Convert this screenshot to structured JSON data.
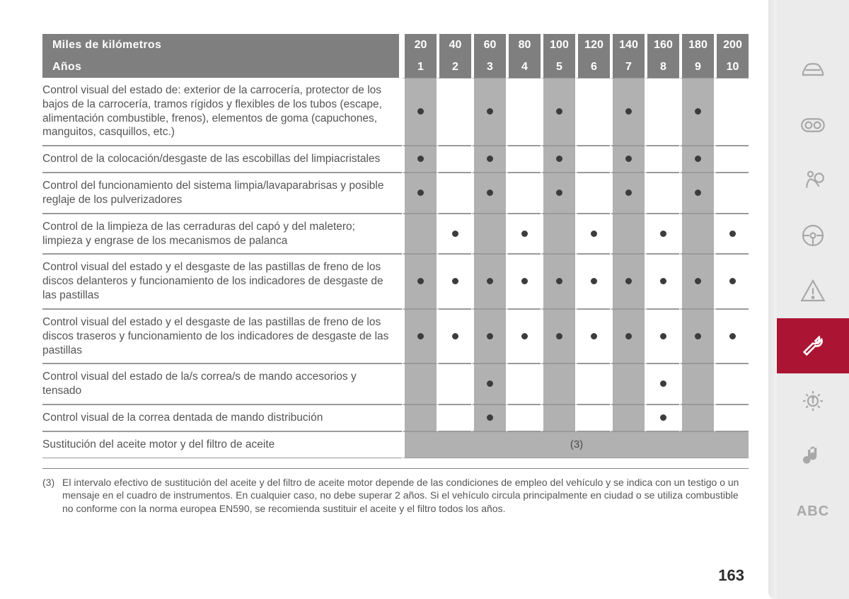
{
  "table": {
    "header1": {
      "label": "Miles de kilómetros",
      "values": [
        "20",
        "40",
        "60",
        "80",
        "100",
        "120",
        "140",
        "160",
        "180",
        "200"
      ]
    },
    "header2": {
      "label": "Años",
      "values": [
        "1",
        "2",
        "3",
        "4",
        "5",
        "6",
        "7",
        "8",
        "9",
        "10"
      ]
    },
    "shaded_cols": [
      0,
      2,
      4,
      6,
      8
    ],
    "rows": [
      {
        "label": "Control visual del estado de: exterior de la carrocería, protector de los bajos de la carrocería, tramos rígidos y flexibles de los tubos (escape, alimentación combustible, frenos), elementos de goma (capuchones, manguitos, casquillos, etc.)",
        "marks": [
          1,
          0,
          1,
          0,
          1,
          0,
          1,
          0,
          1,
          0
        ]
      },
      {
        "label": "Control de la colocación/desgaste de las escobillas del limpiacristales",
        "marks": [
          1,
          0,
          1,
          0,
          1,
          0,
          1,
          0,
          1,
          0
        ]
      },
      {
        "label": "Control del funcionamiento del sistema limpia/lavaparabrisas y posible reglaje de los pulverizadores",
        "marks": [
          1,
          0,
          1,
          0,
          1,
          0,
          1,
          0,
          1,
          0
        ]
      },
      {
        "label": "Control de la limpieza de las cerraduras del capó y del maletero; limpieza y engrase de los mecanismos de palanca",
        "marks": [
          0,
          1,
          0,
          1,
          0,
          1,
          0,
          1,
          0,
          1
        ]
      },
      {
        "label": "Control visual del estado y el desgaste de las pastillas de freno de los discos delanteros y funcionamiento de los indicadores de desgaste de las pastillas",
        "marks": [
          1,
          1,
          1,
          1,
          1,
          1,
          1,
          1,
          1,
          1
        ]
      },
      {
        "label": "Control visual del estado y el desgaste de las pastillas de freno de los discos traseros y funcionamiento de los indicadores de desgaste de las pastillas",
        "marks": [
          1,
          1,
          1,
          1,
          1,
          1,
          1,
          1,
          1,
          1
        ]
      },
      {
        "label": "Control visual del estado de la/s correa/s de mando accesorios y tensado",
        "marks": [
          0,
          0,
          1,
          0,
          0,
          0,
          0,
          1,
          0,
          0
        ]
      },
      {
        "label": "Control visual de la correa dentada de mando distribución",
        "marks": [
          0,
          0,
          1,
          0,
          0,
          0,
          0,
          1,
          0,
          0
        ]
      },
      {
        "label": "Sustitución del aceite motor y del filtro de aceite",
        "note": "(3)"
      }
    ]
  },
  "footnote": {
    "num": "(3)",
    "text": "El intervalo efectivo de sustitución del aceite y del filtro de aceite motor depende de las condiciones de empleo del vehículo y se indica con un testigo o un mensaje en el cuadro de instrumentos. En cualquier caso, no debe superar 2 años. Si el vehículo circula principalmente en ciudad o se utiliza combustible no conforme con la norma europea EN590, se recomienda sustituir el aceite y el filtro todos los años."
  },
  "page_number": "163",
  "sidebar": {
    "active_index": 5,
    "abc_label": "ABC"
  },
  "colors": {
    "header_bg": "#7f7f7f",
    "shaded_bg": "#b1b1b1",
    "accent": "#ab1533",
    "text": "#555555",
    "dot": "#3c3c3c"
  }
}
